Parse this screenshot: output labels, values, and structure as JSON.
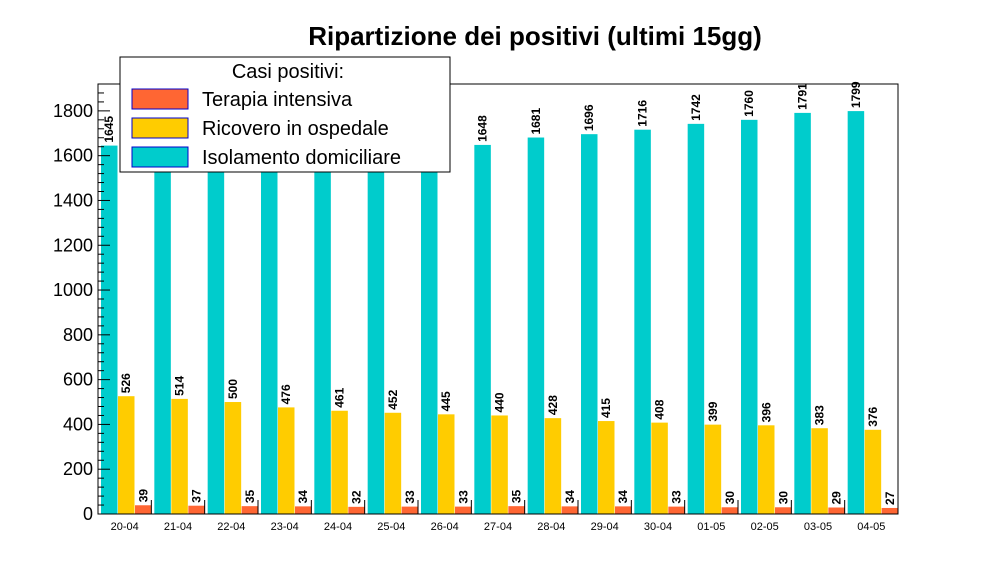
{
  "chart_data": {
    "type": "bar",
    "title": "Ripartizione dei positivi (ultimi 15gg)",
    "xlabel": "",
    "ylabel": "",
    "ylim": [
      0,
      1920
    ],
    "yticks": [
      0,
      200,
      400,
      600,
      800,
      1000,
      1200,
      1400,
      1600,
      1800
    ],
    "grid": false,
    "legend_title": "Casi positivi:",
    "legend_position": "top-left",
    "categories": [
      "20-04",
      "21-04",
      "22-04",
      "23-04",
      "24-04",
      "25-04",
      "26-04",
      "27-04",
      "28-04",
      "29-04",
      "30-04",
      "01-05",
      "02-05",
      "03-05",
      "04-05"
    ],
    "series": [
      {
        "name": "Isolamento domiciliare",
        "color": "#00cccc",
        "values": [
          1645,
          1645,
          1645,
          1645,
          1645,
          1645,
          1645,
          1648,
          1681,
          1696,
          1716,
          1742,
          1760,
          1791,
          1799
        ],
        "labels": [
          "1645",
          "",
          "",
          "",
          "",
          "",
          "",
          "1648",
          "1681",
          "1696",
          "1716",
          "1742",
          "1760",
          "1791",
          "1799"
        ]
      },
      {
        "name": "Ricovero in ospedale",
        "color": "#ffcc00",
        "values": [
          526,
          514,
          500,
          476,
          461,
          452,
          445,
          440,
          428,
          415,
          408,
          399,
          396,
          383,
          376
        ]
      },
      {
        "name": "Terapia intensiva",
        "color": "#ff6633",
        "values": [
          39,
          37,
          35,
          34,
          32,
          33,
          33,
          35,
          34,
          34,
          33,
          30,
          30,
          29,
          27
        ]
      }
    ],
    "legend_order": [
      2,
      1,
      0
    ]
  }
}
